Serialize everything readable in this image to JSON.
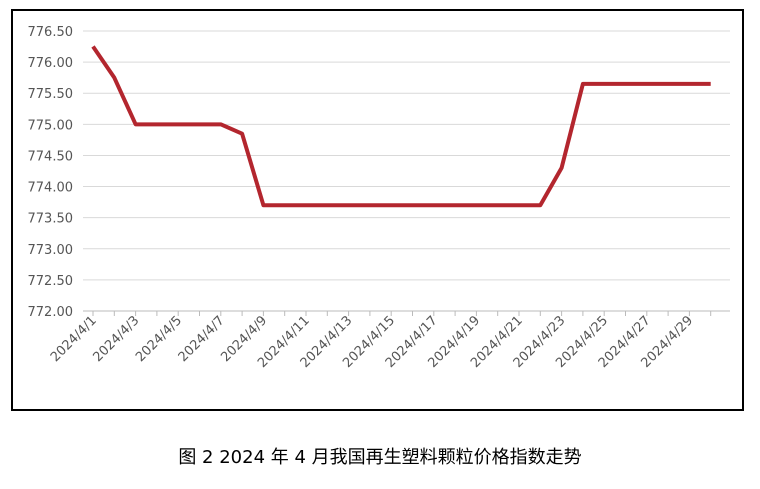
{
  "chart_data": {
    "type": "line",
    "caption": "图 2  2024 年 4 月我国再生塑料颗粒价格指数走势",
    "categories": [
      "2024/4/1",
      null,
      "2024/4/3",
      null,
      "2024/4/5",
      null,
      "2024/4/7",
      null,
      "2024/4/9",
      null,
      "2024/4/11",
      null,
      "2024/4/13",
      null,
      "2024/4/15",
      null,
      "2024/4/17",
      null,
      "2024/4/19",
      null,
      "2024/4/21",
      null,
      "2024/4/23",
      null,
      "2024/4/25",
      null,
      "2024/4/27",
      null,
      "2024/4/29",
      null
    ],
    "values": [
      776.25,
      775.75,
      775.0,
      775.0,
      775.0,
      775.0,
      775.0,
      774.85,
      773.7,
      773.7,
      773.7,
      773.7,
      773.7,
      773.7,
      773.7,
      773.7,
      773.7,
      773.7,
      773.7,
      773.7,
      773.7,
      773.7,
      774.3,
      775.65,
      775.65,
      775.65,
      775.65,
      775.65,
      775.65,
      775.65
    ],
    "color": "#b3262e",
    "ylim": [
      772,
      776.5
    ],
    "yticks": [
      {
        "value": 772,
        "label": "772.00"
      },
      {
        "value": 772.5,
        "label": "772.50"
      },
      {
        "value": 773,
        "label": "773.00"
      },
      {
        "value": 773.5,
        "label": "773.50"
      },
      {
        "value": 774,
        "label": "774.00"
      },
      {
        "value": 774.5,
        "label": "774.50"
      },
      {
        "value": 775,
        "label": "775.00"
      },
      {
        "value": 775.5,
        "label": "775.50"
      },
      {
        "value": 776,
        "label": "776.00"
      },
      {
        "value": 776.5,
        "label": "776.50"
      }
    ],
    "grid": true
  }
}
